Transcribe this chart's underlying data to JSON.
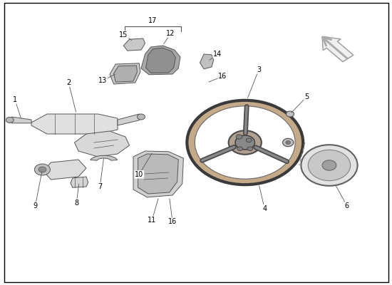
{
  "background_color": "#ffffff",
  "border_color": "#000000",
  "figure_width": 5.5,
  "figure_height": 4.0,
  "dpi": 100,
  "line_color": "#555555",
  "label_fontsize": 7,
  "label_color": "#000000",
  "border_linewidth": 1.0
}
